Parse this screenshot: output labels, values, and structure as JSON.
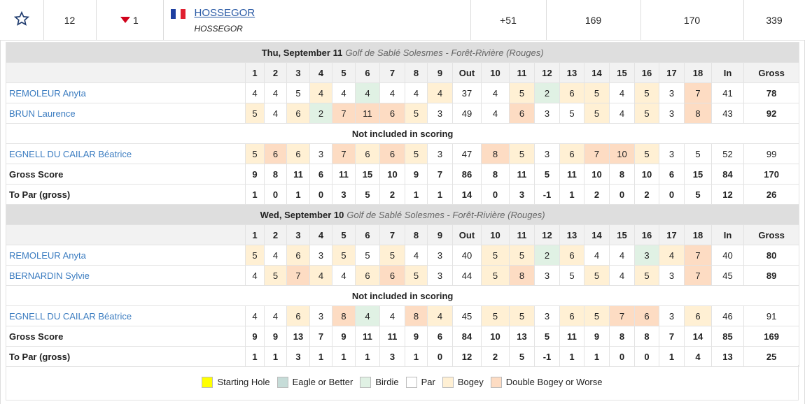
{
  "team": {
    "rank": 12,
    "change": 1,
    "name": "HOSSEGOR",
    "club": "HOSSEGOR",
    "to_par": "+51",
    "scores": [
      169,
      170,
      339
    ]
  },
  "rounds": [
    {
      "date": "Thu, September 11",
      "course": "Golf de Sablé Solesmes - Forêt-Rivière (Rouges)",
      "columns": [
        1,
        2,
        3,
        4,
        5,
        6,
        7,
        8,
        9,
        "Out",
        10,
        11,
        12,
        13,
        14,
        15,
        16,
        17,
        18,
        "In",
        "Gross"
      ],
      "rows": [
        {
          "name": "REMOLEUR Anyta",
          "scores": [
            4,
            4,
            5,
            4,
            4,
            4,
            4,
            4,
            4,
            37,
            4,
            5,
            2,
            6,
            5,
            4,
            5,
            3,
            7,
            41,
            78
          ],
          "marks": [
            3,
            3,
            3,
            4,
            3,
            2,
            3,
            3,
            4,
            3,
            4,
            2,
            4,
            4,
            3,
            4,
            3,
            5
          ]
        },
        {
          "name": "BRUN Laurence",
          "scores": [
            5,
            4,
            6,
            2,
            7,
            11,
            6,
            5,
            3,
            49,
            4,
            6,
            3,
            5,
            5,
            4,
            5,
            3,
            8,
            43,
            92
          ],
          "marks": [
            4,
            3,
            4,
            2,
            5,
            5,
            5,
            4,
            3,
            3,
            5,
            3,
            3,
            4,
            3,
            4,
            3,
            5
          ]
        },
        {
          "note": "Not included in scoring"
        },
        {
          "name": "EGNELL DU CAILAR Béatrice",
          "scores": [
            5,
            6,
            6,
            3,
            7,
            6,
            6,
            5,
            3,
            47,
            8,
            5,
            3,
            6,
            7,
            10,
            5,
            3,
            5,
            52,
            99
          ],
          "marks": [
            4,
            5,
            4,
            3,
            5,
            4,
            5,
            4,
            3,
            5,
            4,
            3,
            4,
            5,
            5,
            4,
            3,
            3
          ]
        },
        {
          "name": "Gross Score",
          "scores": [
            9,
            8,
            11,
            6,
            11,
            15,
            10,
            9,
            7,
            86,
            8,
            11,
            5,
            11,
            10,
            8,
            10,
            6,
            15,
            84,
            170
          ]
        },
        {
          "name": "To Par (gross)",
          "scores": [
            1,
            0,
            1,
            0,
            3,
            5,
            2,
            1,
            1,
            14,
            0,
            3,
            -1,
            1,
            2,
            0,
            2,
            0,
            5,
            12,
            26
          ]
        }
      ]
    },
    {
      "date": "Wed, September 10",
      "course": "Golf de Sablé Solesmes - Forêt-Rivière (Rouges)",
      "columns": [
        1,
        2,
        3,
        4,
        5,
        6,
        7,
        8,
        9,
        "Out",
        10,
        11,
        12,
        13,
        14,
        15,
        16,
        17,
        18,
        "In",
        "Gross"
      ],
      "rows": [
        {
          "name": "REMOLEUR Anyta",
          "scores": [
            5,
            4,
            6,
            3,
            5,
            5,
            5,
            4,
            3,
            40,
            5,
            5,
            2,
            6,
            4,
            4,
            3,
            4,
            7,
            40,
            80
          ],
          "marks": [
            4,
            3,
            4,
            3,
            4,
            3,
            4,
            3,
            3,
            4,
            4,
            2,
            4,
            3,
            3,
            2,
            4,
            5
          ]
        },
        {
          "name": "BERNARDIN Sylvie",
          "scores": [
            4,
            5,
            7,
            4,
            4,
            6,
            6,
            5,
            3,
            44,
            5,
            8,
            3,
            5,
            5,
            4,
            5,
            3,
            7,
            45,
            89
          ],
          "marks": [
            3,
            4,
            5,
            4,
            3,
            4,
            5,
            4,
            3,
            4,
            5,
            3,
            3,
            4,
            3,
            4,
            3,
            5
          ]
        },
        {
          "note": "Not included in scoring"
        },
        {
          "name": "EGNELL DU CAILAR Béatrice",
          "scores": [
            4,
            4,
            6,
            3,
            8,
            4,
            4,
            8,
            4,
            45,
            5,
            5,
            3,
            6,
            5,
            7,
            6,
            3,
            6,
            46,
            91
          ],
          "marks": [
            3,
            3,
            4,
            3,
            5,
            2,
            3,
            5,
            4,
            4,
            4,
            3,
            4,
            4,
            5,
            5,
            3,
            4
          ]
        },
        {
          "name": "Gross Score",
          "scores": [
            9,
            9,
            13,
            7,
            9,
            11,
            11,
            9,
            6,
            84,
            10,
            13,
            5,
            11,
            9,
            8,
            8,
            7,
            14,
            85,
            169
          ]
        },
        {
          "name": "To Par (gross)",
          "scores": [
            1,
            1,
            3,
            1,
            1,
            1,
            3,
            1,
            0,
            12,
            2,
            5,
            -1,
            1,
            1,
            0,
            0,
            1,
            4,
            13,
            25
          ]
        }
      ]
    }
  ],
  "legend": [
    {
      "label": "Starting Hole",
      "color": "#ffff00"
    },
    {
      "label": "Eagle or Better",
      "color": "#c6dcd8"
    },
    {
      "label": "Birdie",
      "color": "#e0f1e4"
    },
    {
      "label": "Par",
      "color": "#ffffff"
    },
    {
      "label": "Bogey",
      "color": "#fff0d4"
    },
    {
      "label": "Double Bogey or Worse",
      "color": "#fddcc3"
    }
  ]
}
